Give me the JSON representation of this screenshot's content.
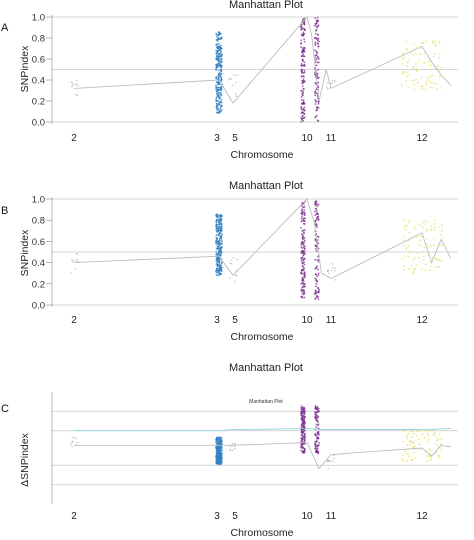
{
  "chart_data": [
    {
      "panel": "A",
      "type": "scatter",
      "title": "Manhattan Plot",
      "subtitle": "",
      "ylabel": "SNPindex",
      "xlabel": "Chromosome",
      "ylim": [
        0,
        1
      ],
      "yticks": [
        "0.0",
        "0.2",
        "0.4",
        "0.6",
        "0.8",
        "1.0"
      ],
      "ytick_values": [
        0,
        0.2,
        0.4,
        0.6,
        0.8,
        1.0
      ],
      "hlines": [
        1.0,
        0.5,
        0.0
      ],
      "xticks": [
        "2",
        "3",
        "5",
        "10",
        "11",
        "12"
      ],
      "clusters": [
        {
          "chrom": "2",
          "color": "#9a9a9a",
          "y_min": 0.22,
          "y_max": 0.42,
          "density": "sparse"
        },
        {
          "chrom": "3",
          "color": "#2f7fc1",
          "y_min": 0.08,
          "y_max": 0.86,
          "density": "dense"
        },
        {
          "chrom": "5",
          "color": "#9a9a9a",
          "y_min": 0.18,
          "y_max": 0.48,
          "density": "sparse"
        },
        {
          "chrom": "10",
          "color": "#7b2d8e",
          "y_min": 0.0,
          "y_max": 1.0,
          "density": "dense"
        },
        {
          "chrom": "11",
          "color": "#9a9a9a",
          "y_min": 0.28,
          "y_max": 0.42,
          "density": "sparse"
        },
        {
          "chrom": "12",
          "color": "#e6e06a",
          "y_min": 0.3,
          "y_max": 0.78,
          "density": "medium"
        }
      ],
      "trend": [
        [
          2,
          0.32
        ],
        [
          3,
          0.4
        ],
        [
          5,
          0.18
        ],
        [
          10,
          1.0
        ],
        [
          10.2,
          0.82
        ],
        [
          10.5,
          0.2
        ],
        [
          10.8,
          0.5
        ],
        [
          11,
          0.32
        ],
        [
          12,
          0.72
        ],
        [
          12.3,
          0.5
        ],
        [
          12.6,
          0.35
        ]
      ]
    },
    {
      "panel": "B",
      "type": "scatter",
      "title": "Manhattan Plot",
      "subtitle": "",
      "ylabel": "SNPindex",
      "xlabel": "Chromosome",
      "ylim": [
        0,
        1
      ],
      "yticks": [
        "0.0",
        "0.2",
        "0.4",
        "0.6",
        "0.8",
        "1.0"
      ],
      "ytick_values": [
        0,
        0.2,
        0.4,
        0.6,
        0.8,
        1.0
      ],
      "hlines": [
        1.0,
        0.5,
        0.0
      ],
      "xticks": [
        "2",
        "3",
        "5",
        "10",
        "11",
        "12"
      ],
      "clusters": [
        {
          "chrom": "2",
          "color": "#9a9a9a",
          "y_min": 0.3,
          "y_max": 0.5,
          "density": "sparse"
        },
        {
          "chrom": "3",
          "color": "#2f7fc1",
          "y_min": 0.28,
          "y_max": 0.86,
          "density": "dense"
        },
        {
          "chrom": "5",
          "color": "#9a9a9a",
          "y_min": 0.22,
          "y_max": 0.46,
          "density": "sparse"
        },
        {
          "chrom": "10",
          "color": "#7b2d8e",
          "y_min": 0.05,
          "y_max": 1.0,
          "density": "dense"
        },
        {
          "chrom": "11",
          "color": "#9a9a9a",
          "y_min": 0.22,
          "y_max": 0.4,
          "density": "sparse"
        },
        {
          "chrom": "12",
          "color": "#e6e06a",
          "y_min": 0.3,
          "y_max": 0.8,
          "density": "medium"
        }
      ],
      "trend": [
        [
          2,
          0.4
        ],
        [
          3,
          0.46
        ],
        [
          5,
          0.28
        ],
        [
          10,
          1.0
        ],
        [
          10.3,
          0.78
        ],
        [
          10.6,
          0.3
        ],
        [
          11,
          0.25
        ],
        [
          12,
          0.68
        ],
        [
          12.2,
          0.4
        ],
        [
          12.4,
          0.62
        ],
        [
          12.6,
          0.44
        ]
      ]
    },
    {
      "panel": "C",
      "type": "scatter",
      "title": "Manhattan Plot",
      "subtitle": "Manhattan Plot",
      "ylabel": "ΔSNPindex",
      "xlabel": "Chromosome",
      "ylim": [
        -1,
        1
      ],
      "yticks": [],
      "ytick_values": [],
      "hlines": [
        0.68,
        0.32,
        -0.32,
        -0.68
      ],
      "xticks": [
        "2",
        "3",
        "5",
        "10",
        "11",
        "12"
      ],
      "clusters": [
        {
          "chrom": "2",
          "color": "#9a9a9a",
          "y_min": -0.05,
          "y_max": 0.2,
          "density": "sparse"
        },
        {
          "chrom": "3",
          "color": "#2f7fc1",
          "y_min": -0.3,
          "y_max": 0.2,
          "density": "dense"
        },
        {
          "chrom": "5",
          "color": "#9a9a9a",
          "y_min": -0.05,
          "y_max": 0.1,
          "density": "sparse"
        },
        {
          "chrom": "10",
          "color": "#7b2d8e",
          "y_min": -0.1,
          "y_max": 0.78,
          "density": "dense"
        },
        {
          "chrom": "11",
          "color": "#9a9a9a",
          "y_min": -0.45,
          "y_max": -0.1,
          "density": "sparse"
        },
        {
          "chrom": "12",
          "color": "#e6e06a",
          "y_min": -0.25,
          "y_max": 0.35,
          "density": "medium"
        }
      ],
      "trend": [
        [
          2,
          0.05
        ],
        [
          3,
          0.05
        ],
        [
          5,
          0.05
        ],
        [
          10,
          0.1
        ],
        [
          10.5,
          -0.38
        ],
        [
          11,
          -0.12
        ],
        [
          12,
          0.0
        ],
        [
          12.2,
          -0.15
        ],
        [
          12.4,
          0.05
        ],
        [
          12.6,
          0.02
        ]
      ],
      "trend2": [
        [
          2,
          0.32
        ],
        [
          3,
          0.32
        ],
        [
          5,
          0.34
        ],
        [
          10,
          0.36
        ],
        [
          10.6,
          0.34
        ],
        [
          11,
          0.34
        ],
        [
          12,
          0.34
        ],
        [
          12.6,
          0.36
        ]
      ]
    }
  ]
}
